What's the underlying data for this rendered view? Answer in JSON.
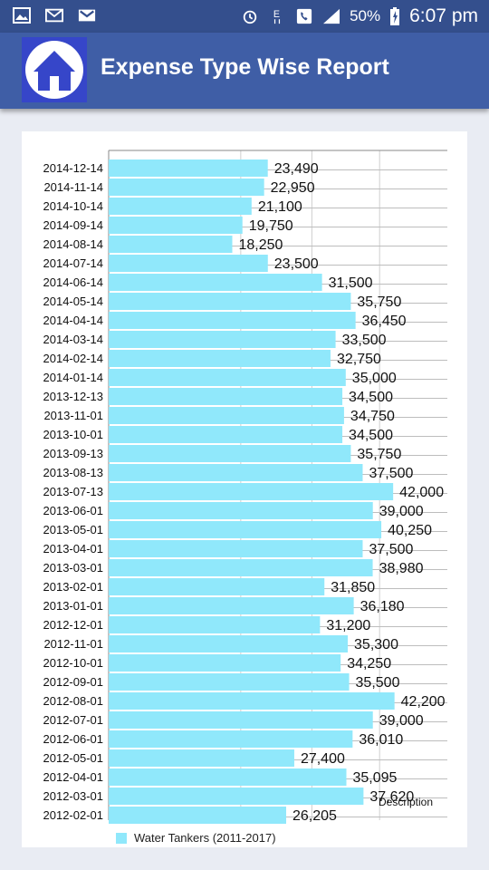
{
  "status_bar": {
    "icons": [
      "gallery-icon",
      "email-icon",
      "gmail-icon"
    ],
    "right_icons": [
      "alarm-icon",
      "data-e-icon",
      "call-icon",
      "signal-icon"
    ],
    "battery": "50%",
    "time": "6:07 pm"
  },
  "app_bar": {
    "title": "Expense Type Wise Report",
    "home_icon": "home-icon"
  },
  "colors": {
    "status_bar": "#344f8d",
    "app_bar": "#3f5ea6",
    "home_button": "#3646c9",
    "bar": "#90e8fb"
  },
  "chart_data": {
    "type": "bar",
    "orientation": "horizontal",
    "categories": [
      "2014-12-14",
      "2014-11-14",
      "2014-10-14",
      "2014-09-14",
      "2014-08-14",
      "2014-07-14",
      "2014-06-14",
      "2014-05-14",
      "2014-04-14",
      "2014-03-14",
      "2014-02-14",
      "2014-01-14",
      "2013-12-13",
      "2013-11-01",
      "2013-10-01",
      "2013-09-13",
      "2013-08-13",
      "2013-07-13",
      "2013-06-01",
      "2013-05-01",
      "2013-04-01",
      "2013-03-01",
      "2013-02-01",
      "2013-01-01",
      "2012-12-01",
      "2012-11-01",
      "2012-10-01",
      "2012-09-01",
      "2012-08-01",
      "2012-07-01",
      "2012-06-01",
      "2012-05-01",
      "2012-04-01",
      "2012-03-01",
      "2012-02-01"
    ],
    "series": [
      {
        "name": "Water Tankers (2011-2017)",
        "values": [
          23490,
          22950,
          21100,
          19750,
          18250,
          23500,
          31500,
          35750,
          36450,
          33500,
          32750,
          35000,
          34500,
          34750,
          34500,
          35750,
          37500,
          42000,
          39000,
          40250,
          37500,
          38980,
          31850,
          36180,
          31200,
          35300,
          34250,
          35500,
          42200,
          39000,
          36010,
          27400,
          35095,
          37620,
          26205
        ],
        "value_labels": [
          "23,490",
          "22,950",
          "21,100",
          "19,750",
          "18,250",
          "23,500",
          "31,500",
          "35,750",
          "36,450",
          "33,500",
          "32,750",
          "35,000",
          "34,500",
          "34,750",
          "34,500",
          "35,750",
          "37,500",
          "42,000",
          "39,000",
          "40,250",
          "37,500",
          "38,980",
          "31,850",
          "36,180",
          "31,200",
          "35,300",
          "34,250",
          "35,500",
          "42,200",
          "39,000",
          "36,010",
          "27,400",
          "35,095",
          "37,620",
          "26,205"
        ]
      }
    ],
    "xlim": [
      0,
      50000
    ],
    "description_label": "Description",
    "legend_position": "bottom-left",
    "grid": true
  }
}
